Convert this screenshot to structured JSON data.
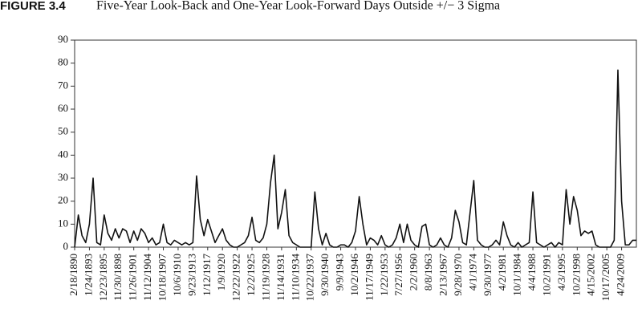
{
  "chart_data": {
    "type": "line",
    "title": "FIGURE 3.4",
    "subtitle": "Five-Year Look-Back and One-Year Look-Forward Days Outside +/− 3 Sigma",
    "categories": [
      "2/18/1890",
      null,
      null,
      null,
      "1/24/1893",
      null,
      null,
      null,
      "12/23/1895",
      null,
      null,
      null,
      "11/30/1898",
      null,
      null,
      null,
      "11/26/1901",
      null,
      null,
      null,
      "11/12/1904",
      null,
      null,
      null,
      "10/18/1907",
      null,
      null,
      null,
      "10/6/1910",
      null,
      null,
      null,
      "9/23/1913",
      null,
      null,
      null,
      "1/12/1917",
      null,
      null,
      null,
      "1/9/1920",
      null,
      null,
      null,
      "12/22/1922",
      null,
      null,
      null,
      "12/2/1925",
      null,
      null,
      null,
      "11/19/1928",
      null,
      null,
      null,
      "11/14/1931",
      null,
      null,
      null,
      "11/10/1934",
      null,
      null,
      null,
      "10/22/1937",
      null,
      null,
      null,
      "9/30/1940",
      null,
      null,
      null,
      "9/9/1943",
      null,
      null,
      null,
      "10/2/1946",
      null,
      null,
      null,
      "11/17/1949",
      null,
      null,
      null,
      "1/22/1953",
      null,
      null,
      null,
      "7/27/1956",
      null,
      null,
      null,
      "2/2/1960",
      null,
      null,
      null,
      "8/8/1963",
      null,
      null,
      null,
      "2/13/1967",
      null,
      null,
      null,
      "9/28/1970",
      null,
      null,
      null,
      "4/1/1974",
      null,
      null,
      null,
      "9/30/1977",
      null,
      null,
      null,
      "4/2/1981",
      null,
      null,
      null,
      "10/1/1984",
      null,
      null,
      null,
      "4/4/1988",
      null,
      null,
      null,
      "10/2/1991",
      null,
      null,
      null,
      "4/3/1995",
      null,
      null,
      null,
      "10/2/1998",
      null,
      null,
      null,
      "4/15/2002",
      null,
      null,
      null,
      "10/17/2005",
      null,
      null,
      null,
      "4/24/2009",
      null,
      null,
      null,
      null
    ],
    "values": [
      0,
      14,
      5,
      2,
      10,
      30,
      2,
      1,
      14,
      6,
      3,
      8,
      4,
      8,
      7,
      2,
      7,
      3,
      8,
      6,
      2,
      4,
      1,
      2,
      10,
      2,
      1,
      3,
      2,
      1,
      2,
      1,
      2,
      31,
      12,
      5,
      12,
      7,
      2,
      5,
      8,
      3,
      1,
      0,
      0,
      1,
      2,
      5,
      13,
      3,
      2,
      4,
      10,
      28,
      40,
      8,
      15,
      25,
      5,
      2,
      1,
      0,
      0,
      0,
      0,
      24,
      8,
      1,
      6,
      1,
      0,
      0,
      1,
      1,
      0,
      2,
      7,
      22,
      10,
      1,
      4,
      3,
      1,
      5,
      1,
      0,
      1,
      4,
      10,
      2,
      10,
      3,
      1,
      0,
      9,
      10,
      1,
      0,
      1,
      4,
      1,
      0,
      4,
      16,
      11,
      2,
      1,
      15,
      29,
      3,
      1,
      0,
      0,
      1,
      3,
      1,
      11,
      5,
      1,
      0,
      2,
      0,
      1,
      2,
      24,
      2,
      1,
      0,
      1,
      2,
      0,
      2,
      1,
      25,
      10,
      22,
      16,
      5,
      7,
      6,
      7,
      1,
      0,
      0,
      0,
      0,
      3,
      77,
      20,
      1,
      1,
      3,
      3
    ],
    "color": "#111111",
    "ylim": [
      0,
      90
    ],
    "yticks": [
      0,
      10,
      20,
      30,
      40,
      50,
      60,
      70,
      80,
      90
    ]
  }
}
